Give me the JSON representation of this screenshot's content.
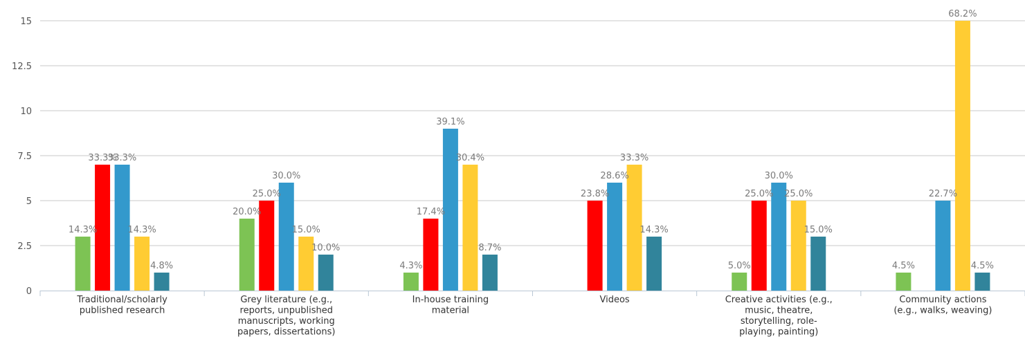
{
  "chart_data": {
    "type": "bar",
    "categories": [
      [
        "Traditional/scholarly",
        "published research"
      ],
      [
        "Grey literature (e.g.,",
        "reports, unpublished",
        "manuscripts, working",
        "papers, dissertations)"
      ],
      [
        "In-house training",
        "material"
      ],
      [
        "Videos"
      ],
      [
        "Creative activities (e.g.,",
        "music, theatre,",
        "storytelling, role-",
        "playing, painting)"
      ],
      [
        "Community actions",
        "(e.g., walks, weaving)"
      ]
    ],
    "series": [
      {
        "color": "#7dc354",
        "values": [
          3,
          4,
          1,
          null,
          1,
          1
        ],
        "labels": [
          "14.3%",
          "20.0%",
          "4.3%",
          "",
          "5.0%",
          "4.5%"
        ]
      },
      {
        "color": "#ff0000",
        "values": [
          7,
          5,
          4,
          5,
          5,
          null
        ],
        "labels": [
          "33.3%",
          "25.0%",
          "17.4%",
          "23.8%",
          "25.0%",
          ""
        ]
      },
      {
        "color": "#3399cc",
        "values": [
          7,
          6,
          9,
          6,
          6,
          5
        ],
        "labels": [
          "33.3%",
          "30.0%",
          "39.1%",
          "28.6%",
          "30.0%",
          "22.7%"
        ]
      },
      {
        "color": "#ffcc33",
        "values": [
          3,
          3,
          7,
          7,
          5,
          15
        ],
        "labels": [
          "14.3%",
          "15.0%",
          "30.4%",
          "33.3%",
          "25.0%",
          "68.2%"
        ]
      },
      {
        "color": "#31849b",
        "values": [
          1,
          2,
          2,
          3,
          3,
          1
        ],
        "labels": [
          "4.8%",
          "10.0%",
          "8.7%",
          "14.3%",
          "15.0%",
          "4.5%"
        ]
      }
    ],
    "yticks": [
      "0",
      "2.5",
      "5",
      "7.5",
      "10",
      "12.5",
      "15"
    ],
    "ylim": [
      0,
      15
    ],
    "grid": true,
    "legend": "none"
  }
}
